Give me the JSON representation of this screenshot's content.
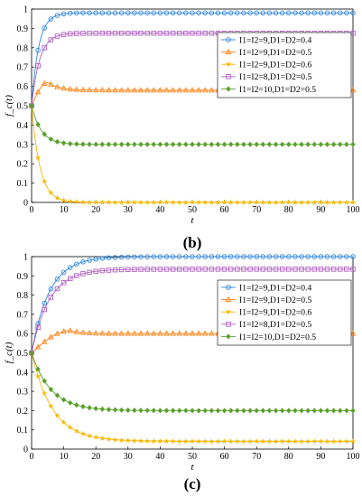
{
  "chart_data": [
    {
      "type": "line",
      "panel_label": "(b)",
      "xlabel": "t",
      "ylabel": "f_c(t)",
      "xlim": [
        0,
        100
      ],
      "ylim": [
        0,
        1
      ],
      "xticks": [
        "0",
        "10",
        "20",
        "30",
        "40",
        "50",
        "60",
        "70",
        "80",
        "90",
        "100"
      ],
      "yticks": [
        "0",
        "0.1",
        "0.2",
        "0.3",
        "0.4",
        "0.5",
        "0.6",
        "0.7",
        "0.8",
        "0.9",
        "1"
      ],
      "legend_position": "top-right",
      "series": [
        {
          "name": "I1=I2=9,D1=D2=0.4",
          "color": "#2e86de",
          "marker": "circle",
          "start": 0.5,
          "end": 0.98,
          "tau": 2.2
        },
        {
          "name": "I1=I2=9,D1=D2=0.5",
          "color": "#ff7f0e",
          "marker": "triangle",
          "start": 0.5,
          "end": 0.58,
          "peak": 0.62,
          "peak_t": 5
        },
        {
          "name": "I1=I2=9,D1=D2=0.6",
          "color": "#f5b800",
          "marker": "star",
          "start": 0.5,
          "end": 0.0,
          "tau": 2.6
        },
        {
          "name": "I1=I2=8,D1=D2=0.5",
          "color": "#b060c0",
          "marker": "square",
          "start": 0.5,
          "end": 0.875,
          "tau": 2.5
        },
        {
          "name": "I1=I2=10,D1=D2=0.5",
          "color": "#5aa02c",
          "marker": "diamond",
          "start": 0.5,
          "end": 0.3,
          "tau": 3.0
        }
      ]
    },
    {
      "type": "line",
      "panel_label": "(c)",
      "xlabel": "t",
      "ylabel": "f_c(t)",
      "xlim": [
        0,
        100
      ],
      "ylim": [
        0,
        1
      ],
      "xticks": [
        "0",
        "10",
        "20",
        "30",
        "40",
        "50",
        "60",
        "70",
        "80",
        "90",
        "100"
      ],
      "yticks": [
        "0",
        "0.1",
        "0.2",
        "0.3",
        "0.4",
        "0.5",
        "0.6",
        "0.7",
        "0.8",
        "0.9",
        "1"
      ],
      "legend_position": "top-right",
      "series": [
        {
          "name": "I1=I2=9,D1=D2=0.4",
          "color": "#2e86de",
          "marker": "circle",
          "start": 0.5,
          "end": 1.0,
          "tau": 5.5
        },
        {
          "name": "I1=I2=9,D1=D2=0.5",
          "color": "#ff7f0e",
          "marker": "triangle",
          "start": 0.5,
          "end": 0.6,
          "peak": 0.615,
          "peak_t": 12
        },
        {
          "name": "I1=I2=9,D1=D2=0.6",
          "color": "#f5b800",
          "marker": "star",
          "start": 0.5,
          "end": 0.04,
          "tau": 6.5
        },
        {
          "name": "I1=I2=8,D1=D2=0.5",
          "color": "#b060c0",
          "marker": "square",
          "start": 0.5,
          "end": 0.935,
          "tau": 5.5
        },
        {
          "name": "I1=I2=10,D1=D2=0.5",
          "color": "#5aa02c",
          "marker": "diamond",
          "start": 0.5,
          "end": 0.2,
          "tau": 6.0
        }
      ]
    }
  ]
}
